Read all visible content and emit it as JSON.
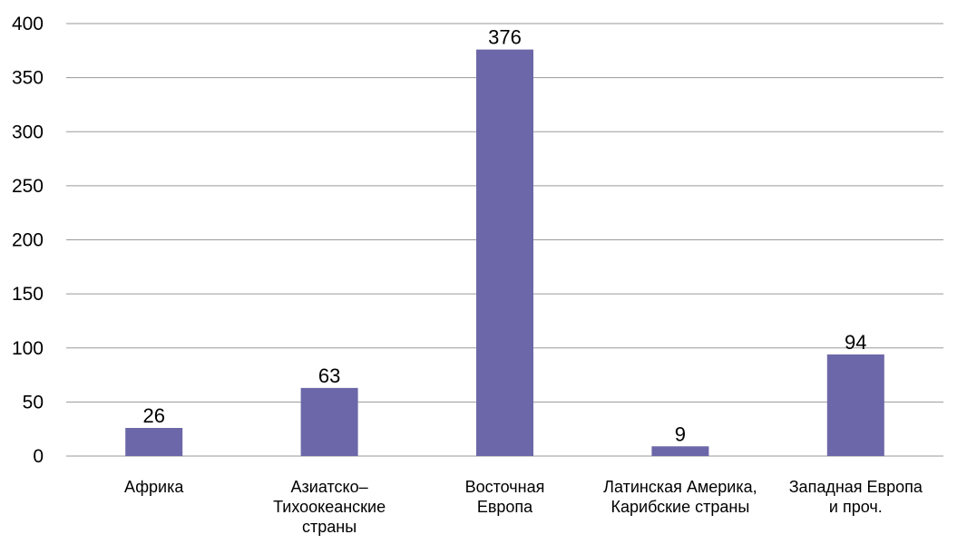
{
  "chart_data": {
    "type": "bar",
    "title": "",
    "xlabel": "",
    "ylabel": "",
    "categories": [
      [
        "Африка"
      ],
      [
        "Азиатско–",
        "Тихоокеанские",
        "страны"
      ],
      [
        "Восточная",
        "Европа"
      ],
      [
        "Латинская Америка,",
        "Карибские страны"
      ],
      [
        "Западная Европа",
        "и проч."
      ]
    ],
    "values": [
      26,
      63,
      376,
      9,
      94
    ],
    "data_labels": [
      "26",
      "63",
      "376",
      "9",
      "94"
    ],
    "ylim": [
      0,
      400
    ],
    "yticks": [
      0,
      50,
      100,
      150,
      200,
      250,
      300,
      350,
      400
    ],
    "grid": true,
    "legend": "none",
    "colors": {
      "bar": "#6C67A8",
      "grid": "#9a9a9a",
      "text": "#000000"
    }
  }
}
